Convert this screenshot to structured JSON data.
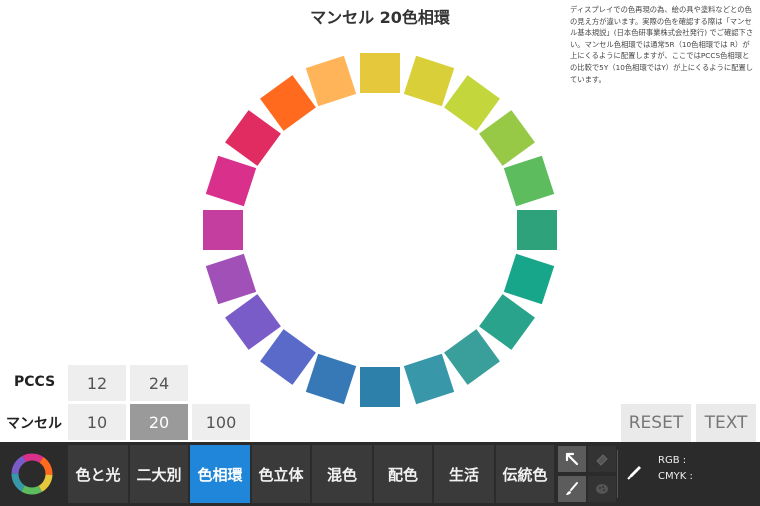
{
  "title": "マンセル 20色相環",
  "description": [
    "ディスプレイでの色再現の為、絵の具や塗料などとの色の見え方が違います。実際の色を確認する際は「マンセル基本規説」(日本色研事業株式会社発行) でご確認下さい。マンセル色相環では通常5R（10色相環では R）が上にくるように配置しますが、ここではPCCS色相環との比較で5Y（10色相環ではY）が上にくるように配置しています。"
  ],
  "wheel": {
    "hue_count": 20,
    "colors": [
      "#e6c83c",
      "#d9cf38",
      "#c3d63b",
      "#97c946",
      "#5dbd5e",
      "#2ea27a",
      "#18a68a",
      "#2aa38c",
      "#3a9e9a",
      "#3898aa",
      "#2c80aa",
      "#3679b6",
      "#5a6ac8",
      "#7a5cc8",
      "#a150b7",
      "#c43ea0",
      "#d9308c",
      "#e02c60",
      "#ff6a1e",
      "#ffb45a"
    ]
  },
  "systems": {
    "pccs": {
      "label": "PCCS",
      "options": [
        "12",
        "24"
      ]
    },
    "munsell": {
      "label": "マンセル",
      "options": [
        "10",
        "20",
        "100"
      ],
      "selected": "20"
    }
  },
  "actions": {
    "reset": "RESET",
    "text": "TEXT"
  },
  "nav_tabs": [
    "色と光",
    "二大別",
    "色相環",
    "色立体",
    "混色",
    "配色",
    "生活",
    "伝統色"
  ],
  "active_tab": "色相環",
  "readouts": {
    "rgb_label": "RGB :",
    "cmyk_label": "CMYK :"
  }
}
